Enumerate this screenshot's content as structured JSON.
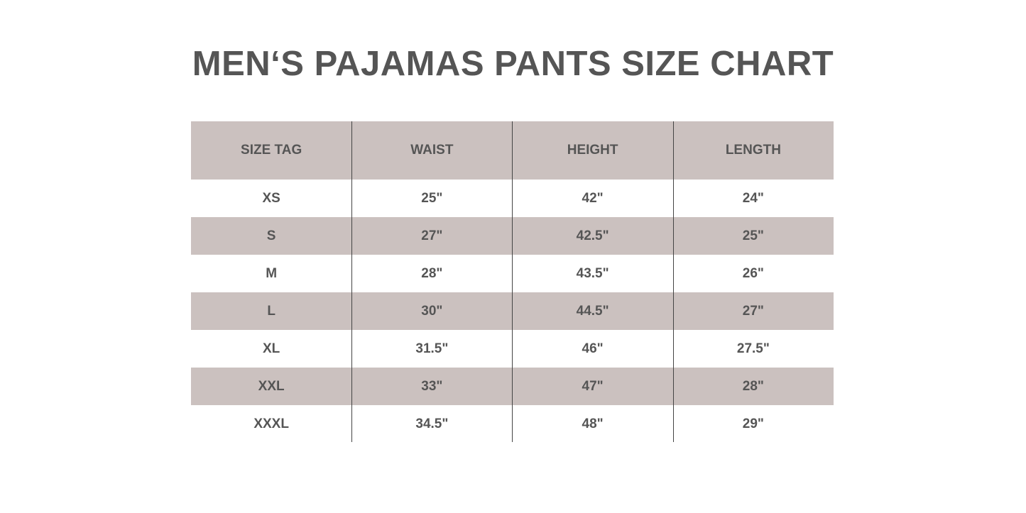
{
  "title": "MEN‘S PAJAMAS PANTS SIZE CHART",
  "colors": {
    "header_bg": "#cbc1bf",
    "text": "#555555",
    "shaded_row_bg": "#cbc1bf"
  },
  "table": {
    "headers": [
      "SIZE TAG",
      "WAIST",
      "HEIGHT",
      "LENGTH"
    ],
    "rows": [
      [
        "XS",
        "25\"",
        "42\"",
        "24\""
      ],
      [
        "S",
        "27\"",
        "42.5\"",
        "25\""
      ],
      [
        "M",
        "28\"",
        "43.5\"",
        "26\""
      ],
      [
        "L",
        "30\"",
        "44.5\"",
        "27\""
      ],
      [
        "XL",
        "31.5\"",
        "46\"",
        "27.5\""
      ],
      [
        "XXL",
        "33\"",
        "47\"",
        "28\""
      ],
      [
        "XXXL",
        "34.5\"",
        "48\"",
        "29\""
      ]
    ]
  }
}
